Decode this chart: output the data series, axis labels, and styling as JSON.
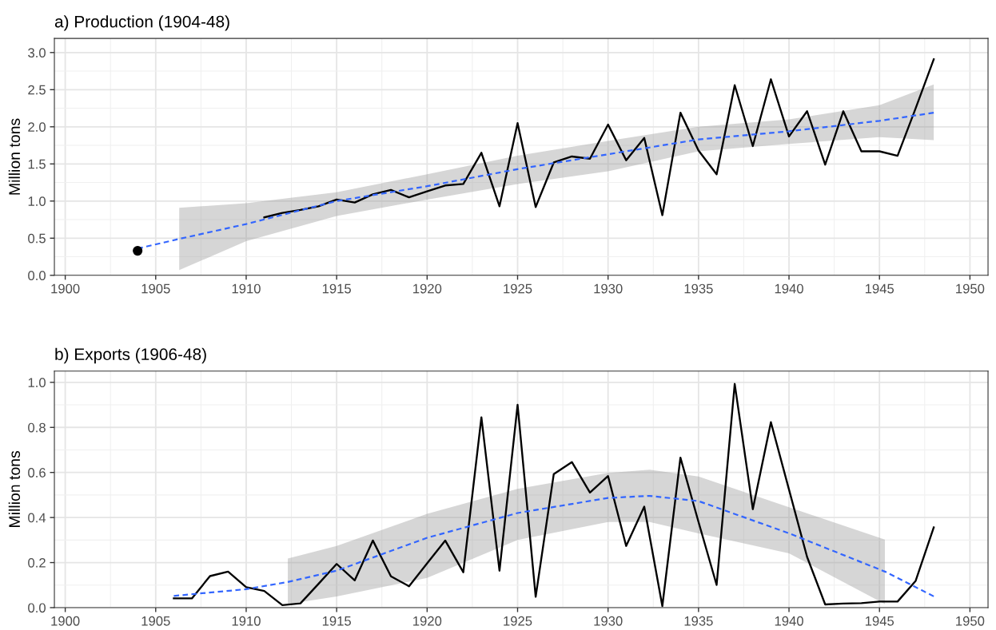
{
  "chart_data": [
    {
      "type": "line",
      "title": "a) Production (1904-48)",
      "ylabel": "Million tons",
      "xlim": [
        1899.4,
        1951.0
      ],
      "ylim": [
        0,
        3.19
      ],
      "xticks": [
        1900,
        1905,
        1910,
        1915,
        1920,
        1925,
        1930,
        1935,
        1940,
        1945,
        1950
      ],
      "yticks": [
        {
          "value": 0,
          "label": "0.0"
        },
        {
          "value": 0.5,
          "label": "0.5"
        },
        {
          "value": 1,
          "label": "1.0"
        },
        {
          "value": 1.5,
          "label": "1.5"
        },
        {
          "value": 2,
          "label": "2.0"
        },
        {
          "value": 2.5,
          "label": "2.5"
        },
        {
          "value": 3,
          "label": "3.0"
        }
      ],
      "grid": true,
      "series": [
        {
          "color": "#000000",
          "line_style": "solid",
          "x": [
            1911,
            1912,
            1913,
            1914,
            1915,
            1916,
            1917,
            1918,
            1919,
            1920,
            1921,
            1922,
            1923,
            1924,
            1925,
            1926,
            1927,
            1928,
            1929,
            1930,
            1931,
            1932,
            1933,
            1934,
            1935,
            1936,
            1937,
            1938,
            1939,
            1940,
            1941,
            1942,
            1943,
            1944,
            1945,
            1946,
            1947,
            1948
          ],
          "values": [
            0.78,
            0.84,
            0.88,
            0.93,
            1.02,
            0.98,
            1.09,
            1.15,
            1.05,
            1.13,
            1.21,
            1.23,
            1.65,
            0.93,
            2.05,
            0.92,
            1.52,
            1.6,
            1.57,
            2.03,
            1.55,
            1.85,
            0.81,
            2.19,
            1.68,
            1.36,
            2.56,
            1.74,
            2.64,
            1.87,
            2.21,
            1.49,
            2.21,
            1.67,
            1.67,
            1.61,
            2.25,
            2.91
          ]
        },
        {
          "type": "scatter",
          "color": "#000000",
          "marker": "circle",
          "x": [
            1904
          ],
          "values": [
            0.33
          ]
        },
        {
          "color": "#3366ff",
          "line_style": "dashed",
          "x": [
            1904,
            1906.3,
            1910,
            1915,
            1920,
            1925,
            1930,
            1935,
            1940,
            1945,
            1948
          ],
          "values": [
            0.36,
            0.49,
            0.69,
            1.0,
            1.2,
            1.43,
            1.63,
            1.83,
            1.94,
            2.08,
            2.19
          ],
          "lower": [
            null,
            0.07,
            0.46,
            0.8,
            1.02,
            1.23,
            1.4,
            1.67,
            1.77,
            1.86,
            1.82
          ],
          "upper": [
            null,
            0.91,
            0.97,
            1.12,
            1.36,
            1.61,
            1.81,
            2.0,
            2.1,
            2.29,
            2.57
          ]
        }
      ]
    },
    {
      "type": "line",
      "title": "b) Exports (1906-48)",
      "ylabel": "Million tons",
      "xlim": [
        1899.4,
        1951.0
      ],
      "ylim": [
        0,
        1.05
      ],
      "xticks": [
        1900,
        1905,
        1910,
        1915,
        1920,
        1925,
        1930,
        1935,
        1940,
        1945,
        1950
      ],
      "yticks": [
        {
          "value": 0,
          "label": "0.0"
        },
        {
          "value": 0.2,
          "label": "0.2"
        },
        {
          "value": 0.4,
          "label": "0.4"
        },
        {
          "value": 0.6,
          "label": "0.6"
        },
        {
          "value": 0.8,
          "label": "0.8"
        },
        {
          "value": 1,
          "label": "1.0"
        }
      ],
      "grid": true,
      "series": [
        {
          "color": "#000000",
          "line_style": "solid",
          "x": [
            1906,
            1907,
            1908,
            1909,
            1910,
            1911,
            1912,
            1913,
            1914,
            1915,
            1916,
            1917,
            1918,
            1919,
            1920,
            1921,
            1922,
            1923,
            1924,
            1925,
            1926,
            1927,
            1928,
            1929,
            1930,
            1931,
            1932,
            1933,
            1934,
            1935,
            1936,
            1937,
            1938,
            1939,
            1940,
            1941,
            1942,
            1943,
            1944,
            1945,
            1946,
            1947,
            1948
          ],
          "values": [
            0.041,
            0.041,
            0.14,
            0.16,
            0.091,
            0.074,
            0.011,
            0.019,
            0.106,
            0.194,
            0.121,
            0.298,
            0.139,
            0.095,
            0.197,
            0.298,
            0.157,
            0.845,
            0.164,
            0.9,
            0.048,
            0.593,
            0.646,
            0.511,
            0.584,
            0.274,
            0.448,
            0.007,
            0.666,
            0.38,
            0.101,
            0.993,
            0.437,
            0.823,
            0.524,
            0.225,
            0.014,
            0.018,
            0.02,
            0.027,
            0.027,
            0.119,
            0.356
          ]
        },
        {
          "color": "#3366ff",
          "line_style": "dashed",
          "x": [
            1906,
            1910,
            1912.3,
            1915,
            1920,
            1925,
            1930,
            1932.3,
            1935,
            1940,
            1945.3,
            1948
          ],
          "values": [
            0.052,
            0.082,
            0.114,
            0.164,
            0.31,
            0.42,
            0.487,
            0.496,
            0.473,
            0.33,
            0.16,
            0.05
          ],
          "lower": [
            null,
            null,
            0.016,
            0.05,
            0.132,
            0.3,
            0.38,
            0.38,
            0.33,
            0.241,
            0.016,
            null
          ],
          "upper": [
            null,
            null,
            0.218,
            0.274,
            0.416,
            0.527,
            0.598,
            0.612,
            0.582,
            0.446,
            0.302,
            null
          ]
        }
      ]
    }
  ]
}
